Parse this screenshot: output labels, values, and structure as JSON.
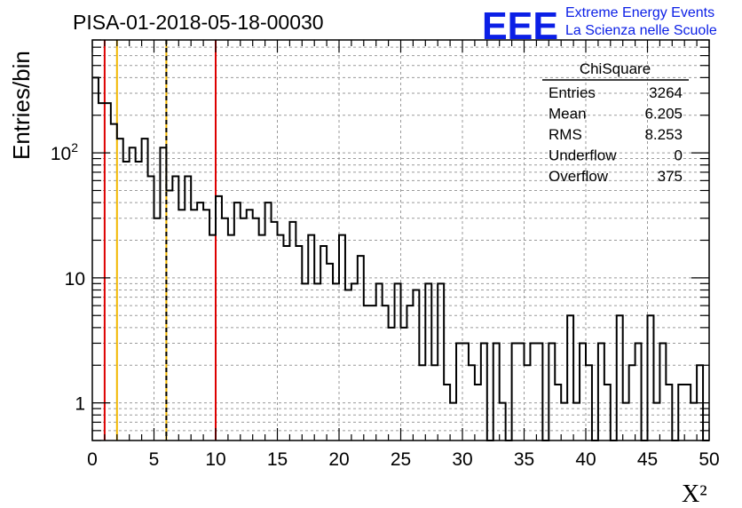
{
  "header": {
    "run_title": "PISA-01-2018-05-18-00030",
    "logo": "EEE",
    "logo_line1": "Extreme Energy Events",
    "logo_line2": "La Scienza nelle Scuole"
  },
  "stats": {
    "name": "ChiSquare",
    "rows": [
      {
        "label": "Entries",
        "value": "3264"
      },
      {
        "label": "Mean",
        "value": "6.205"
      },
      {
        "label": "RMS",
        "value": "8.253"
      },
      {
        "label": "Underflow",
        "value": "0"
      },
      {
        "label": "Overflow",
        "value": "375"
      }
    ]
  },
  "chart_data": {
    "type": "histogram",
    "xlabel": "X²",
    "ylabel": "Entries/bin",
    "xlim": [
      0,
      50
    ],
    "ylim": [
      0.5,
      800
    ],
    "yscale": "log",
    "grid": true,
    "bin_width": 0.5,
    "bin_start": 0,
    "values": [
      400,
      250,
      250,
      170,
      130,
      85,
      110,
      85,
      130,
      65,
      30,
      110,
      50,
      65,
      35,
      65,
      35,
      40,
      35,
      22,
      45,
      30,
      22,
      40,
      30,
      35,
      30,
      22,
      40,
      28,
      22,
      18,
      28,
      18,
      9,
      22,
      9,
      18,
      13,
      9,
      22,
      8,
      9,
      15,
      6,
      6,
      9,
      6,
      4,
      9,
      4,
      6,
      8,
      2,
      9,
      2,
      9,
      1.4,
      1,
      3,
      3,
      2,
      1.4,
      3,
      0,
      3,
      1,
      0,
      3,
      3,
      2,
      3,
      3,
      0,
      3,
      1.4,
      1,
      5,
      1,
      3,
      2,
      0,
      3,
      1.4,
      0,
      5,
      1,
      2,
      3,
      0,
      5,
      1,
      3,
      1.4,
      0,
      1.4,
      1.4,
      1,
      2,
      0
    ],
    "x_ticks": [
      "0",
      "5",
      "10",
      "15",
      "20",
      "25",
      "30",
      "35",
      "40",
      "45",
      "50"
    ],
    "y_ticks": [
      "1",
      "10",
      "10²"
    ],
    "vertical_lines": [
      {
        "x": 1,
        "color": "#dd0000",
        "style": "solid"
      },
      {
        "x": 2,
        "color": "#f2b700",
        "style": "solid"
      },
      {
        "x": 6,
        "color": "#f2b700",
        "style": "solid"
      },
      {
        "x": 6,
        "color": "#000000",
        "style": "dashed"
      },
      {
        "x": 10,
        "color": "#dd0000",
        "style": "solid"
      }
    ]
  }
}
